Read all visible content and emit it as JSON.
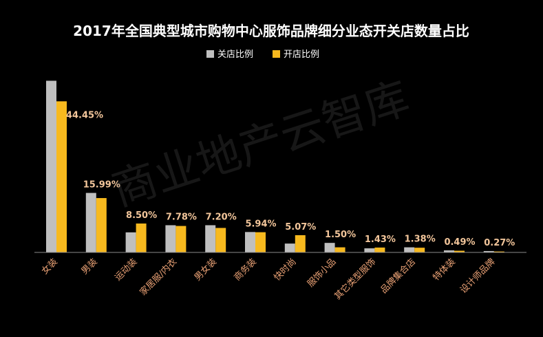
{
  "chart_data": {
    "type": "bar",
    "title": "2017年全国典型城市购物中心服饰品牌细分业态开关店数量占比",
    "categories": [
      "女装",
      "男装",
      "运动装",
      "家居服/内衣",
      "男女装",
      "商务装",
      "快时尚",
      "服饰小品",
      "其它类型服饰",
      "品牌集合店",
      "特体装",
      "设计师品牌"
    ],
    "series": [
      {
        "name": "关店比例",
        "color": "#bfbfbf",
        "values": [
          50.5,
          17.5,
          5.9,
          8.0,
          8.0,
          6.0,
          2.6,
          2.8,
          1.2,
          1.5,
          0.6,
          0.4
        ]
      },
      {
        "name": "开店比例",
        "color": "#f7b91e",
        "values": [
          44.45,
          15.99,
          8.5,
          7.78,
          7.2,
          5.94,
          5.07,
          1.5,
          1.43,
          1.38,
          0.49,
          0.27
        ]
      }
    ],
    "data_labels": [
      "44.45%",
      "15.99%",
      "8.50%",
      "7.78%",
      "7.20%",
      "5.94%",
      "5.07%",
      "1.50%",
      "1.43%",
      "1.38%",
      "0.49%",
      "0.27%"
    ],
    "ylim": [
      0,
      52
    ],
    "grid": false,
    "legend_position": "top-center",
    "colors": {
      "background": "#000000",
      "title": "#ffffff",
      "legend_text": "#ffffff",
      "label": "#f3c69b",
      "category_text": "#e8a074",
      "axis": "#8c8c8c"
    }
  },
  "watermark": "商业地产云智库"
}
